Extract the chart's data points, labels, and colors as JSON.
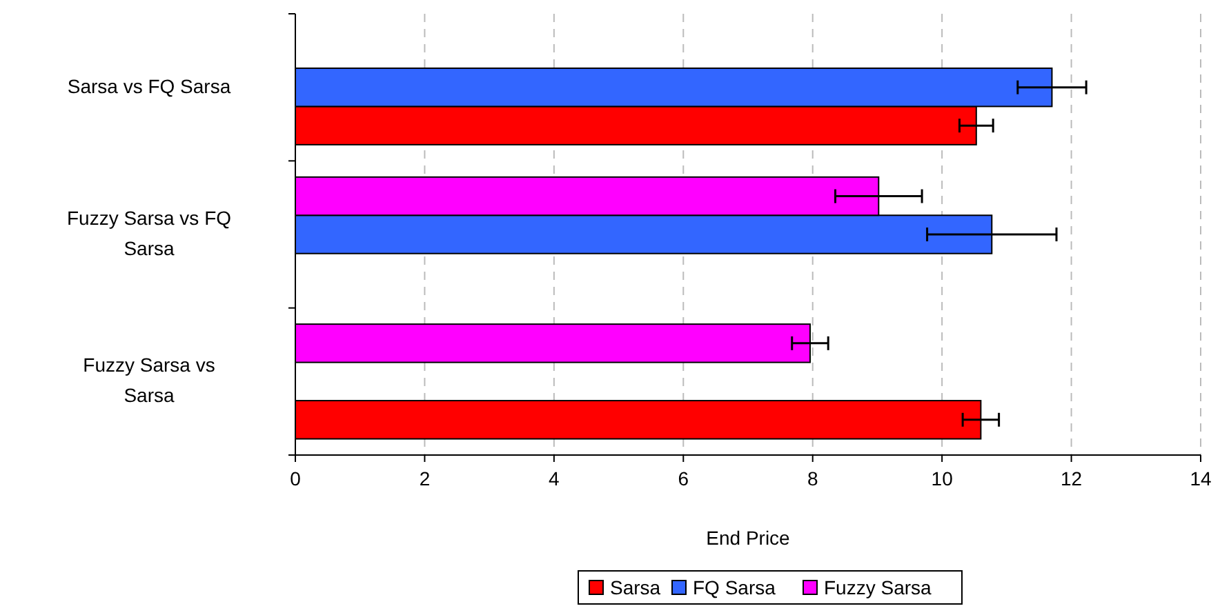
{
  "chart_data": {
    "type": "bar",
    "orientation": "horizontal",
    "categories": [
      "Sarsa vs FQ Sarsa",
      "Fuzzy Sarsa vs FQ Sarsa",
      "Fuzzy Sarsa vs Sarsa"
    ],
    "series": [
      {
        "name": "Sarsa",
        "color": "#ff0000",
        "values": [
          10.53,
          null,
          10.6
        ],
        "errors": [
          0.26,
          null,
          0.28
        ]
      },
      {
        "name": "FQ Sarsa",
        "color": "#3366ff",
        "values": [
          11.7,
          10.77,
          null
        ],
        "errors": [
          0.53,
          1.0,
          null
        ]
      },
      {
        "name": "Fuzzy Sarsa",
        "color": "#ff00ff",
        "values": [
          null,
          9.02,
          7.96
        ],
        "errors": [
          null,
          0.67,
          0.28
        ]
      }
    ],
    "xlabel": "End Price",
    "xlim": [
      0,
      14
    ],
    "xticks": [
      0,
      2,
      4,
      6,
      8,
      10,
      12,
      14
    ],
    "grid": "x",
    "legend": "bottom"
  }
}
